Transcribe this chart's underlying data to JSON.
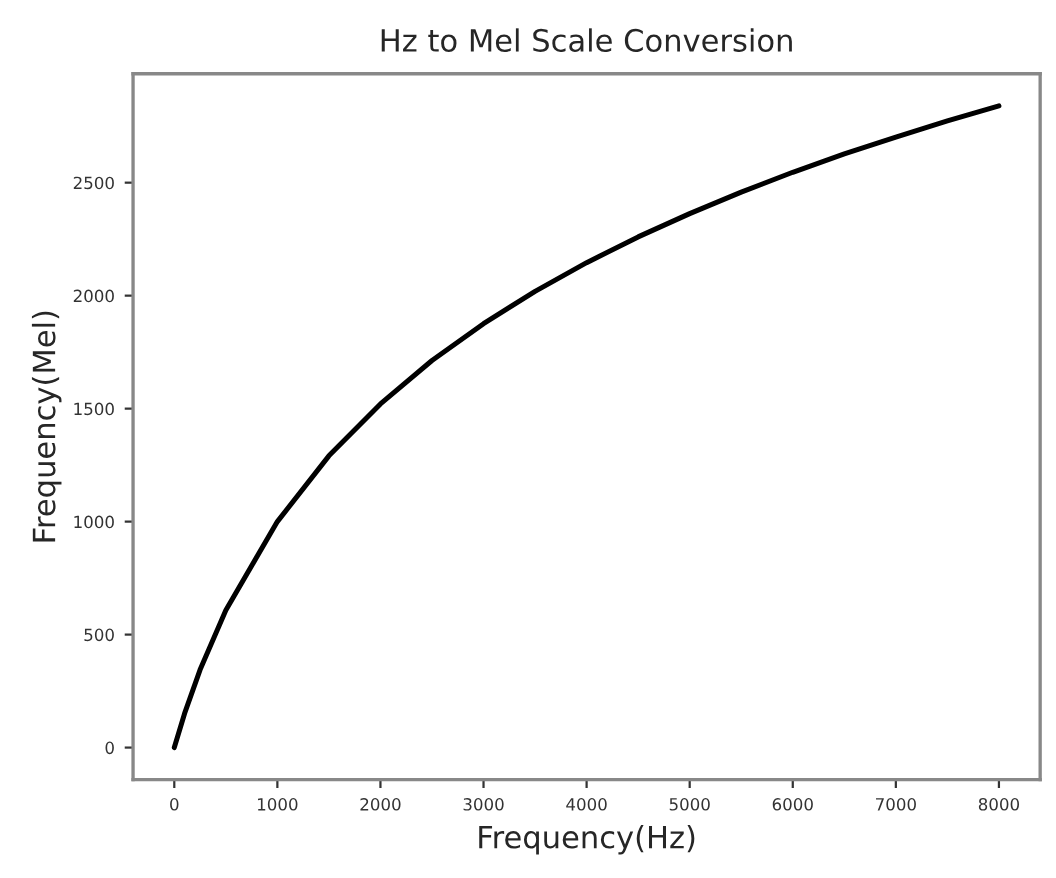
{
  "chart_data": {
    "type": "line",
    "title": "Hz to Mel Scale Conversion",
    "xlabel": "Frequency(Hz)",
    "ylabel": "Frequency(Mel)",
    "x": [
      0,
      100,
      250,
      500,
      1000,
      1500,
      2000,
      2500,
      3000,
      3500,
      4000,
      4500,
      5000,
      5500,
      6000,
      6500,
      7000,
      7500,
      8000
    ],
    "series": [
      {
        "color": "#000000",
        "values": [
          0,
          151,
          344,
          608,
          1000,
          1291,
          1521,
          1713,
          1876,
          2019,
          2146,
          2260,
          2363,
          2458,
          2546,
          2627,
          2702,
          2773,
          2840
        ]
      }
    ],
    "xlim": [
      -400,
      8400
    ],
    "ylim": [
      -142,
      2982
    ],
    "xticks": [
      0,
      1000,
      2000,
      3000,
      4000,
      5000,
      6000,
      7000,
      8000
    ],
    "yticks": [
      0,
      500,
      1000,
      1500,
      2000,
      2500
    ],
    "grid": false,
    "marker": "none",
    "line_style": "solid"
  }
}
